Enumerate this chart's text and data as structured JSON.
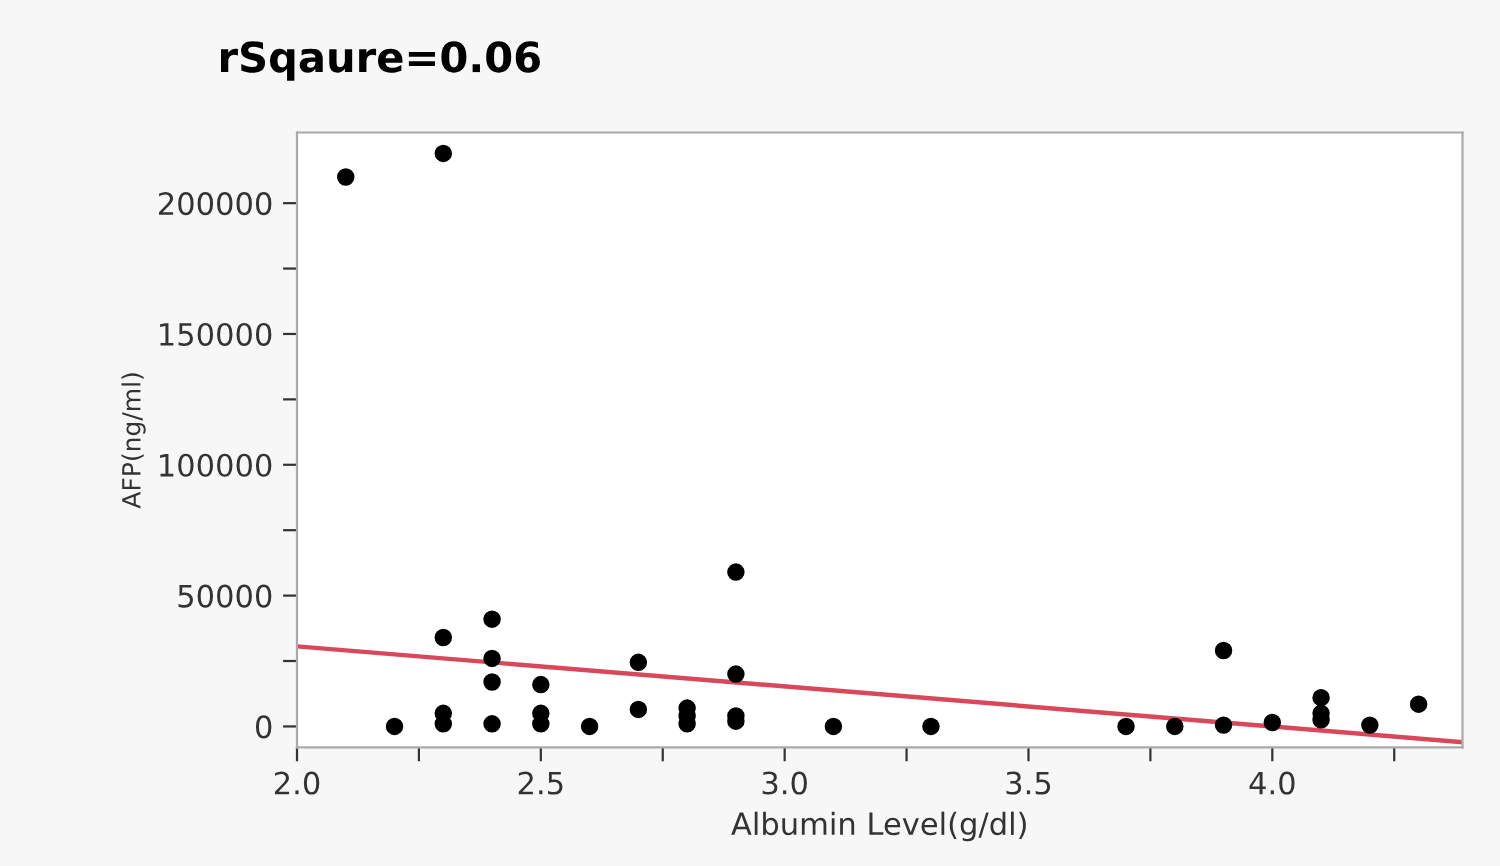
{
  "chart_data": {
    "type": "scatter",
    "title": "rSqaure=0.06",
    "xlabel": "Albumin Level(g/dl)",
    "ylabel": "AFP(ng/ml)",
    "xlim": [
      2.0,
      4.39
    ],
    "ylim": [
      -8000,
      227000
    ],
    "xticks": [
      {
        "value": 2.0,
        "label": "2.0"
      },
      {
        "value": 2.25,
        "label": null
      },
      {
        "value": 2.5,
        "label": "2.5"
      },
      {
        "value": 2.75,
        "label": null
      },
      {
        "value": 3.0,
        "label": "3.0"
      },
      {
        "value": 3.25,
        "label": null
      },
      {
        "value": 3.5,
        "label": "3.5"
      },
      {
        "value": 3.75,
        "label": null
      },
      {
        "value": 4.0,
        "label": "4.0"
      },
      {
        "value": 4.25,
        "label": null
      }
    ],
    "yticks": [
      0,
      {
        "value": 25000,
        "label": null
      },
      50000,
      {
        "value": 75000,
        "label": null
      },
      100000,
      {
        "value": 125000,
        "label": null
      },
      150000,
      {
        "value": 175000,
        "label": null
      },
      200000
    ],
    "grid": false,
    "series": [
      {
        "marker": "circle",
        "color": "#000000",
        "x": [
          2.1,
          2.2,
          2.3,
          2.3,
          2.3,
          2.3,
          2.4,
          2.4,
          2.4,
          2.4,
          2.5,
          2.5,
          2.5,
          2.6,
          2.7,
          2.7,
          2.8,
          2.8,
          2.8,
          2.9,
          2.9,
          2.9,
          2.9,
          3.1,
          3.3,
          3.7,
          3.8,
          3.9,
          3.9,
          4.0,
          4.1,
          4.1,
          4.1,
          4.2,
          4.3
        ],
        "values": [
          210000,
          0,
          219000,
          34000,
          5000,
          1000,
          41000,
          26000,
          17000,
          1000,
          16000,
          5000,
          1000,
          0,
          24500,
          6500,
          7000,
          4000,
          1000,
          59000,
          20000,
          4000,
          2000,
          0,
          0,
          0,
          0,
          29000,
          500,
          1500,
          11000,
          5000,
          2500,
          500,
          8500
        ]
      },
      {
        "type": "line",
        "marker": "none",
        "color": "#d9475a",
        "x": [
          2.0,
          4.39
        ],
        "values": [
          30600,
          -6000
        ]
      }
    ]
  }
}
